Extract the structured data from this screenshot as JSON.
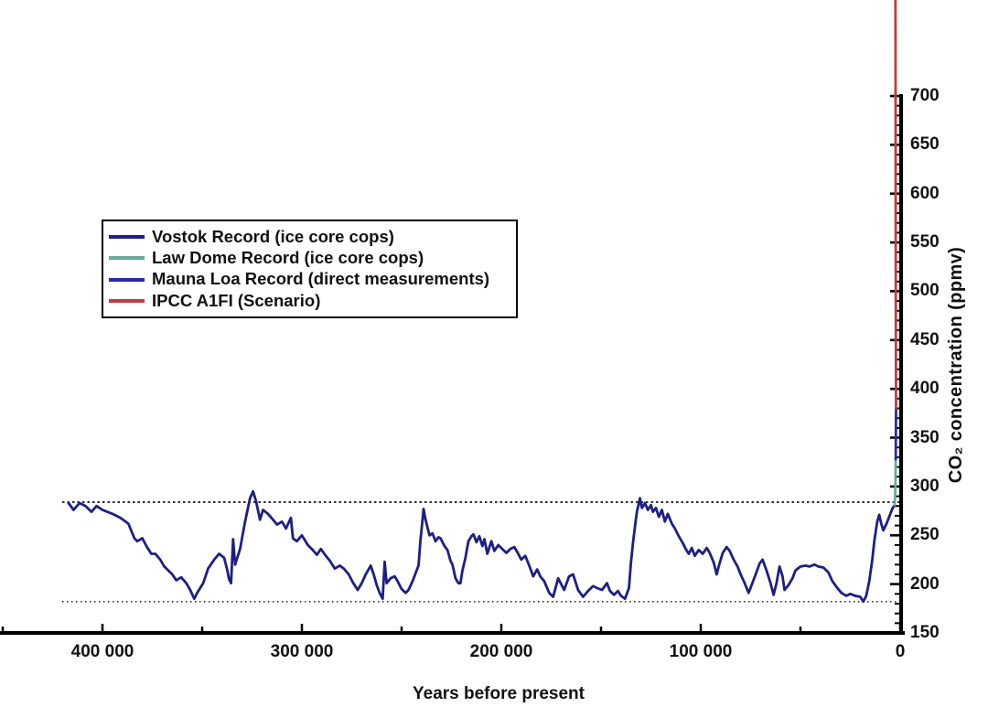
{
  "chart_data": {
    "type": "line",
    "title": "",
    "xlabel": "Years before present",
    "ylabel": "CO₂ concentration (ppmv)",
    "legend_position": "upper left inside plot",
    "grid": false,
    "x_axis": {
      "range": [
        451000,
        0
      ],
      "direction": "reversed (old left, present right)",
      "ticks": [
        400000,
        300000,
        200000,
        100000,
        0
      ],
      "tick_labels": [
        "400 000",
        "300 000",
        "200 000",
        "100 000",
        "0"
      ],
      "minor_step": 50000
    },
    "y_axis": {
      "range": [
        150,
        700
      ],
      "side": "right",
      "ticks": [
        150,
        200,
        250,
        300,
        350,
        400,
        450,
        500,
        550,
        600,
        650,
        700
      ],
      "tick_labels": [
        "150",
        "200",
        "250",
        "300",
        "350",
        "400",
        "450",
        "500",
        "550",
        "600",
        "650",
        "700"
      ],
      "minor_step": 10
    },
    "reference_lines": [
      {
        "value": 284,
        "style": "dotted",
        "axis": "y"
      },
      {
        "value": 182,
        "style": "dotted",
        "axis": "y"
      }
    ],
    "series": [
      {
        "name": "Vostok Record (ice core cops)",
        "color": "#1e1e86",
        "points": [
          [
            417000,
            283
          ],
          [
            414500,
            276
          ],
          [
            411500,
            283
          ],
          [
            408500,
            280
          ],
          [
            405500,
            274
          ],
          [
            403000,
            280
          ],
          [
            400000,
            276
          ],
          [
            395000,
            272
          ],
          [
            391000,
            268
          ],
          [
            387000,
            262
          ],
          [
            384000,
            247
          ],
          [
            382500,
            244
          ],
          [
            380000,
            247
          ],
          [
            378000,
            239
          ],
          [
            375500,
            231
          ],
          [
            373500,
            231
          ],
          [
            371000,
            225
          ],
          [
            369000,
            218
          ],
          [
            365000,
            210
          ],
          [
            363000,
            204
          ],
          [
            360500,
            207
          ],
          [
            358000,
            201
          ],
          [
            356000,
            194
          ],
          [
            354000,
            185
          ],
          [
            352500,
            191
          ],
          [
            349500,
            201
          ],
          [
            347000,
            216
          ],
          [
            344000,
            225
          ],
          [
            341500,
            231
          ],
          [
            339000,
            227
          ],
          [
            337500,
            215
          ],
          [
            336500,
            205
          ],
          [
            335500,
            201
          ],
          [
            334500,
            246
          ],
          [
            333500,
            220
          ],
          [
            331000,
            236
          ],
          [
            328500,
            264
          ],
          [
            326000,
            288
          ],
          [
            324500,
            295
          ],
          [
            323000,
            285
          ],
          [
            321000,
            266
          ],
          [
            319500,
            276
          ],
          [
            317000,
            272
          ],
          [
            314500,
            266
          ],
          [
            312500,
            261
          ],
          [
            310000,
            264
          ],
          [
            308000,
            257
          ],
          [
            305500,
            268
          ],
          [
            304500,
            247
          ],
          [
            302500,
            244
          ],
          [
            300000,
            250
          ],
          [
            297000,
            240
          ],
          [
            295000,
            236
          ],
          [
            292500,
            230
          ],
          [
            290500,
            236
          ],
          [
            288000,
            229
          ],
          [
            286000,
            224
          ],
          [
            283500,
            216
          ],
          [
            281000,
            219
          ],
          [
            279000,
            216
          ],
          [
            276500,
            210
          ],
          [
            274500,
            202
          ],
          [
            272000,
            194
          ],
          [
            270000,
            201
          ],
          [
            268000,
            210
          ],
          [
            265500,
            219
          ],
          [
            264000,
            210
          ],
          [
            262500,
            199
          ],
          [
            261000,
            191
          ],
          [
            259500,
            185
          ],
          [
            258500,
            223
          ],
          [
            257500,
            201
          ],
          [
            255500,
            206
          ],
          [
            253500,
            208
          ],
          [
            252000,
            203
          ],
          [
            250000,
            195
          ],
          [
            248000,
            191
          ],
          [
            246500,
            194
          ],
          [
            244500,
            203
          ],
          [
            242500,
            214
          ],
          [
            241500,
            219
          ],
          [
            240500,
            246
          ],
          [
            239500,
            266
          ],
          [
            239000,
            277
          ],
          [
            238000,
            266
          ],
          [
            237000,
            258
          ],
          [
            236000,
            250
          ],
          [
            234500,
            252
          ],
          [
            233000,
            244
          ],
          [
            231500,
            248
          ],
          [
            230500,
            247
          ],
          [
            228500,
            239
          ],
          [
            227000,
            235
          ],
          [
            225500,
            224
          ],
          [
            224500,
            220
          ],
          [
            223000,
            206
          ],
          [
            221500,
            201
          ],
          [
            220500,
            201
          ],
          [
            219500,
            214
          ],
          [
            218000,
            227
          ],
          [
            216500,
            244
          ],
          [
            215000,
            249
          ],
          [
            214000,
            251
          ],
          [
            212500,
            243
          ],
          [
            211000,
            249
          ],
          [
            209500,
            239
          ],
          [
            208500,
            246
          ],
          [
            207000,
            231
          ],
          [
            205000,
            244
          ],
          [
            203500,
            234
          ],
          [
            201500,
            240
          ],
          [
            199500,
            236
          ],
          [
            197500,
            232
          ],
          [
            195500,
            236
          ],
          [
            193500,
            238
          ],
          [
            191500,
            231
          ],
          [
            190000,
            225
          ],
          [
            188000,
            229
          ],
          [
            186000,
            219
          ],
          [
            184000,
            208
          ],
          [
            182000,
            215
          ],
          [
            180500,
            208
          ],
          [
            178500,
            203
          ],
          [
            176000,
            191
          ],
          [
            174000,
            187
          ],
          [
            171500,
            206
          ],
          [
            168500,
            194
          ],
          [
            166000,
            208
          ],
          [
            164000,
            210
          ],
          [
            161500,
            194
          ],
          [
            159000,
            187
          ],
          [
            156500,
            193
          ],
          [
            154000,
            198
          ],
          [
            152000,
            196
          ],
          [
            149500,
            194
          ],
          [
            147000,
            201
          ],
          [
            145500,
            193
          ],
          [
            143500,
            189
          ],
          [
            141500,
            193
          ],
          [
            140000,
            188
          ],
          [
            138000,
            185
          ],
          [
            136000,
            196
          ],
          [
            135000,
            222
          ],
          [
            134000,
            242
          ],
          [
            133000,
            259
          ],
          [
            132000,
            274
          ],
          [
            131000,
            283
          ],
          [
            130500,
            288
          ],
          [
            129500,
            278
          ],
          [
            128000,
            283
          ],
          [
            126500,
            276
          ],
          [
            125000,
            281
          ],
          [
            124000,
            274
          ],
          [
            122500,
            278
          ],
          [
            121000,
            269
          ],
          [
            119500,
            276
          ],
          [
            118000,
            264
          ],
          [
            116500,
            272
          ],
          [
            114500,
            262
          ],
          [
            113000,
            257
          ],
          [
            111000,
            249
          ],
          [
            109000,
            242
          ],
          [
            107500,
            236
          ],
          [
            106000,
            231
          ],
          [
            104500,
            237
          ],
          [
            103000,
            229
          ],
          [
            101000,
            235
          ],
          [
            99000,
            231
          ],
          [
            97000,
            237
          ],
          [
            95500,
            232
          ],
          [
            93500,
            222
          ],
          [
            92000,
            210
          ],
          [
            91000,
            218
          ],
          [
            89000,
            232
          ],
          [
            87000,
            238
          ],
          [
            85500,
            234
          ],
          [
            83500,
            225
          ],
          [
            81500,
            218
          ],
          [
            80000,
            210
          ],
          [
            78000,
            201
          ],
          [
            76000,
            191
          ],
          [
            74500,
            199
          ],
          [
            72500,
            210
          ],
          [
            70500,
            221
          ],
          [
            69000,
            225
          ],
          [
            67000,
            214
          ],
          [
            65000,
            201
          ],
          [
            63500,
            189
          ],
          [
            62000,
            201
          ],
          [
            60500,
            218
          ],
          [
            59000,
            208
          ],
          [
            58000,
            194
          ],
          [
            56000,
            199
          ],
          [
            54000,
            206
          ],
          [
            52500,
            214
          ],
          [
            50000,
            218
          ],
          [
            47500,
            219
          ],
          [
            45500,
            218
          ],
          [
            43000,
            220
          ],
          [
            41000,
            218
          ],
          [
            38500,
            217
          ],
          [
            36000,
            212
          ],
          [
            34000,
            203
          ],
          [
            31500,
            196
          ],
          [
            29500,
            191
          ],
          [
            27000,
            188
          ],
          [
            25000,
            190
          ],
          [
            22500,
            188
          ],
          [
            20000,
            187
          ],
          [
            18500,
            182
          ],
          [
            17000,
            188
          ],
          [
            15500,
            203
          ],
          [
            14000,
            225
          ],
          [
            13000,
            244
          ],
          [
            11500,
            264
          ],
          [
            10500,
            271
          ],
          [
            9500,
            262
          ],
          [
            8500,
            255
          ],
          [
            7000,
            261
          ],
          [
            5500,
            269
          ],
          [
            4000,
            277
          ],
          [
            2800,
            281
          ]
        ]
      },
      {
        "name": "Law Dome Record (ice core cops)",
        "color": "#6aa998",
        "points": [
          [
            2800,
            281
          ],
          [
            2600,
            286
          ],
          [
            2500,
            292
          ],
          [
            2400,
            300
          ],
          [
            2350,
            310
          ],
          [
            2300,
            320
          ],
          [
            2250,
            328
          ]
        ]
      },
      {
        "name": "Mauna Loa Record (direct measurements)",
        "color": "#2929ae",
        "points": [
          [
            2250,
            328
          ],
          [
            2200,
            340
          ],
          [
            2150,
            355
          ],
          [
            2100,
            368
          ],
          [
            2050,
            380
          ]
        ]
      },
      {
        "name": "IPCC A1FI (Scenario)",
        "color": "#c23b40",
        "points": [
          [
            2050,
            380
          ],
          [
            2150,
            450
          ],
          [
            2250,
            550
          ],
          [
            2300,
            650
          ],
          [
            2350,
            750
          ],
          [
            2400,
            800
          ]
        ]
      }
    ]
  },
  "colors": {
    "background": "#ffffff",
    "axis": "#000000",
    "text": "#111111"
  }
}
